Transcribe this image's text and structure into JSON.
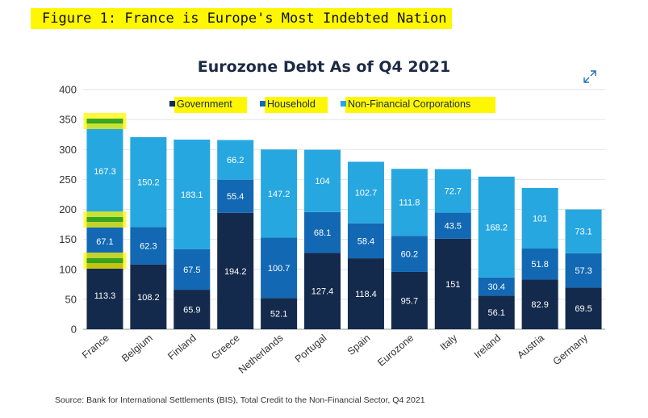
{
  "figure_title": "Figure 1: France is Europe's Most Indebted Nation",
  "source": "Source: Bank for International Settlements (BIS), Total Credit to the Non-Financial Sector, Q4 2021",
  "icon": "expand-icon",
  "colors": {
    "government": "#132a4c",
    "household": "#1268b3",
    "nfc": "#27a7e0",
    "highlight": "#fff700",
    "highlight_green": "#1f9a1f"
  },
  "chart_data": {
    "type": "bar",
    "stacked": true,
    "title": "Eurozone Debt As of Q4 2021",
    "xlabel": "",
    "ylabel": "",
    "ylim": [
      0,
      400
    ],
    "yticks": [
      0,
      50,
      100,
      150,
      200,
      250,
      300,
      350,
      400
    ],
    "grid": true,
    "legend_position": "top",
    "categories": [
      "France",
      "Belgium",
      "Finland",
      "Greece",
      "Netherlands",
      "Portugal",
      "Spain",
      "Eurozone",
      "Italy",
      "Ireland",
      "Austria",
      "Germany"
    ],
    "series": [
      {
        "name": "Government",
        "values": [
          113.3,
          108.2,
          65.9,
          194.2,
          52.1,
          127.4,
          118.4,
          95.7,
          151,
          56.1,
          82.9,
          69.5
        ]
      },
      {
        "name": "Household",
        "values": [
          67.1,
          62.3,
          67.5,
          55.4,
          100.7,
          68.1,
          58.4,
          60.2,
          43.5,
          30.4,
          51.8,
          57.3
        ]
      },
      {
        "name": "Non-Financial Corporations",
        "values": [
          167.3,
          150.2,
          183.1,
          66.2,
          147.2,
          104,
          102.7,
          111.8,
          72.7,
          168.2,
          101,
          73.1
        ]
      }
    ]
  }
}
